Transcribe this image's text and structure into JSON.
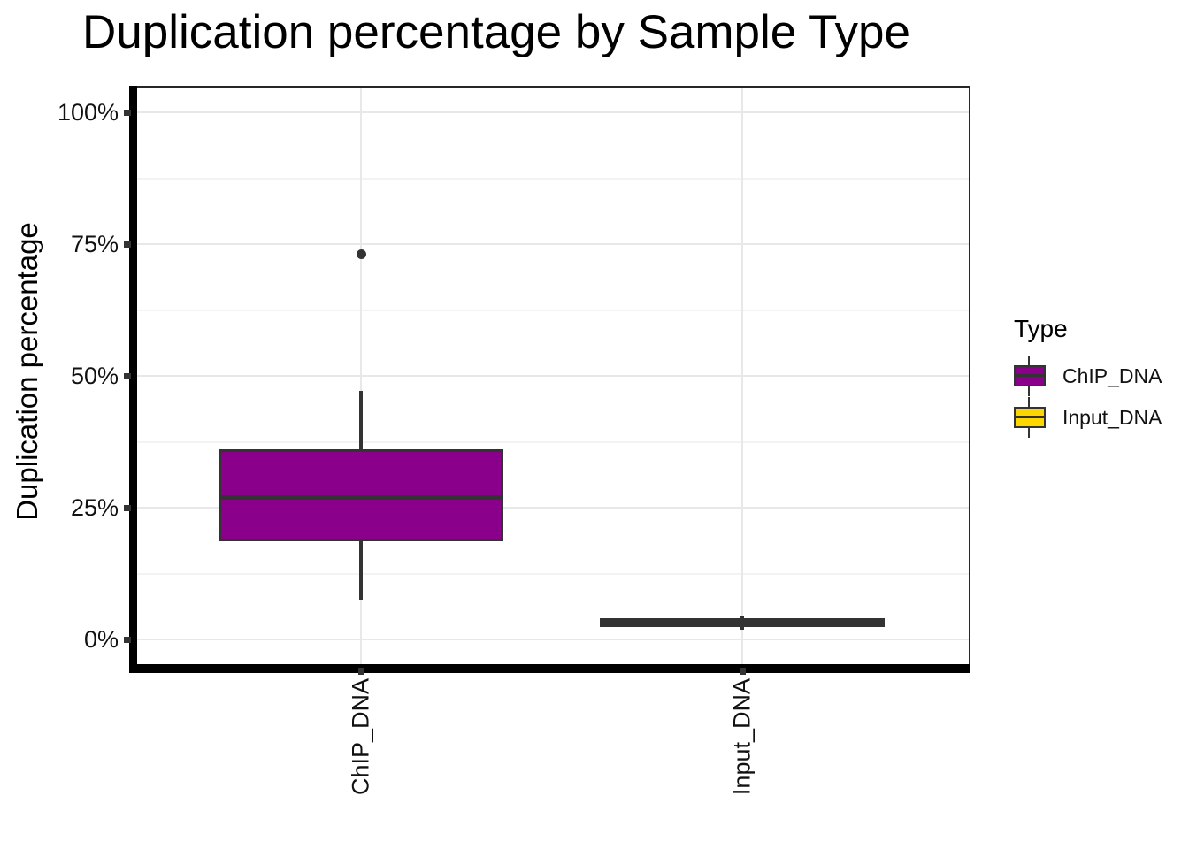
{
  "title": "Duplication percentage by Sample Type",
  "colors": {
    "purple": "#8B008B",
    "gold": "#FFD700",
    "stroke": "#333333",
    "axis": "#000000",
    "grid_major": "#E8E8E8",
    "grid_minor": "#F3F3F3",
    "background": "#FFFFFF"
  },
  "chart_data": {
    "type": "boxplot",
    "title": "Duplication percentage by Sample Type",
    "xlabel": "",
    "ylabel": "Duplication percentage",
    "categories": [
      "ChIP_DNA",
      "Input_DNA"
    ],
    "y_axis": {
      "unit": "percent",
      "ticks": [
        {
          "value": 0,
          "label": "0%"
        },
        {
          "value": 25,
          "label": "25%"
        },
        {
          "value": 50,
          "label": "50%"
        },
        {
          "value": 75,
          "label": "75%"
        },
        {
          "value": 100,
          "label": "100%"
        }
      ],
      "minor_ticks": [
        12.5,
        37.5,
        62.5,
        87.5
      ],
      "ylim": [
        -5,
        105
      ],
      "grid": true
    },
    "series": [
      {
        "name": "ChIP_DNA",
        "fill": "#8B008B",
        "whisker_low": 7.5,
        "q1": 18.6,
        "median": 26.9,
        "q3": 36.1,
        "whisker_high": 47.1,
        "outliers": [
          73
        ]
      },
      {
        "name": "Input_DNA",
        "fill": "#FFD700",
        "whisker_low": 1.9,
        "q1": 2.4,
        "median": 3.3,
        "q3": 4.1,
        "whisker_high": 4.6,
        "outliers": []
      }
    ],
    "legend": {
      "title": "Type",
      "position": "right",
      "entries": [
        {
          "label": "ChIP_DNA",
          "color": "#8B008B"
        },
        {
          "label": "Input_DNA",
          "color": "#FFD700"
        }
      ]
    }
  }
}
